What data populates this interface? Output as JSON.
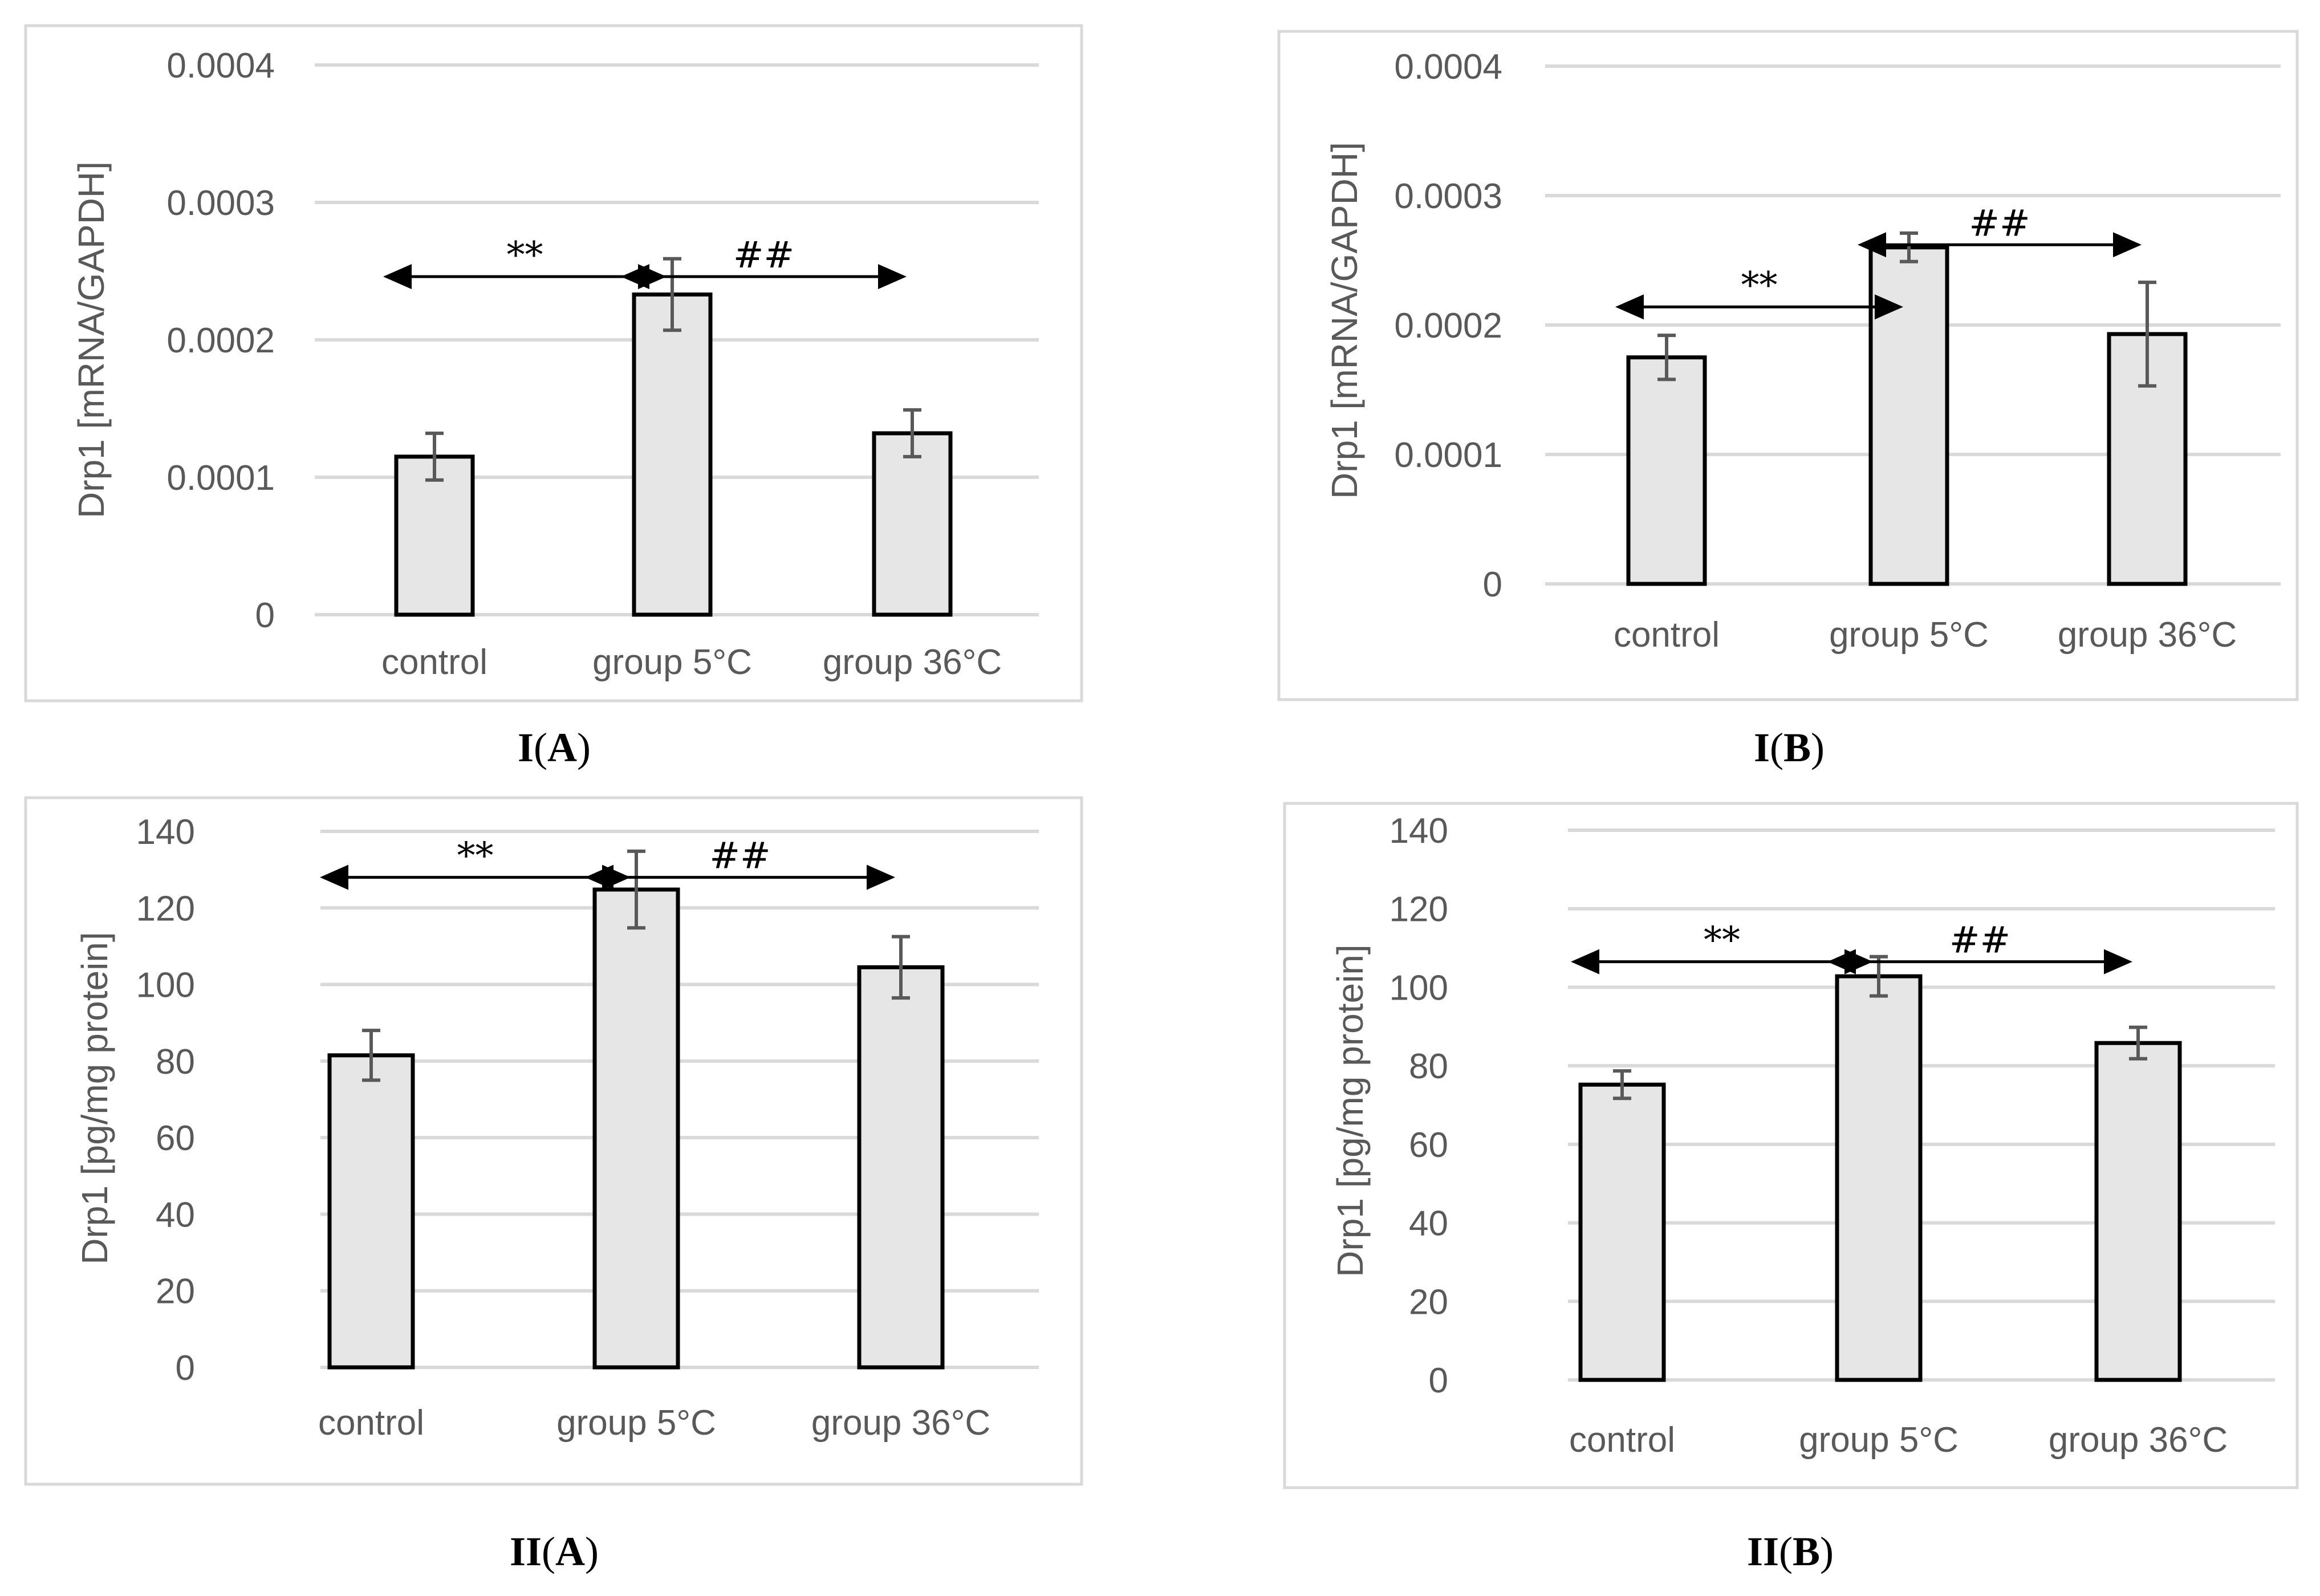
{
  "chart_data": [
    {
      "id": "IA",
      "type": "bar",
      "caption": {
        "roman": "I",
        "letter": "A"
      },
      "ylabel": "Drp1 [mRNA/GAPDH]",
      "categories": [
        "control",
        "group 5°C",
        "group 36°C"
      ],
      "values": [
        0.000115,
        0.000233,
        0.000132
      ],
      "errors": [
        1.7e-05,
        2.6e-05,
        1.7e-05
      ],
      "ylim": [
        0,
        0.0004
      ],
      "yticks": [
        0,
        0.0001,
        0.0002,
        0.0003,
        0.0004
      ],
      "ytick_labels": [
        "0",
        "0.0001",
        "0.0002",
        "0.0003",
        "0.0004"
      ],
      "grid": true,
      "annotations": [
        {
          "text": "**",
          "from": 0,
          "to": 1,
          "y": 0.000246
        },
        {
          "text": "##",
          "from": 1,
          "to": 2,
          "y": 0.000246
        }
      ]
    },
    {
      "id": "IB",
      "type": "bar",
      "caption": {
        "roman": "I",
        "letter": "B"
      },
      "ylabel": "Drp1 [mRNA/GAPDH]",
      "categories": [
        "control",
        "group 5°C",
        "group 36°C"
      ],
      "values": [
        0.000175,
        0.00026,
        0.000193
      ],
      "errors": [
        1.7e-05,
        1.1e-05,
        4e-05
      ],
      "ylim": [
        0,
        0.0004
      ],
      "yticks": [
        0,
        0.0001,
        0.0002,
        0.0003,
        0.0004
      ],
      "ytick_labels": [
        "0",
        "0.0001",
        "0.0002",
        "0.0003",
        "0.0004"
      ],
      "grid": true,
      "annotations": [
        {
          "text": "**",
          "from": 0,
          "to": 1,
          "y": 0.000214
        },
        {
          "text": "##",
          "from": 1,
          "to": 2,
          "y": 0.000262
        }
      ]
    },
    {
      "id": "IIA",
      "type": "bar",
      "caption": {
        "roman": "II",
        "letter": "A"
      },
      "ylabel": "Drp1 [pg/mg protein]",
      "categories": [
        "control",
        "group 5°C",
        "group 36°C"
      ],
      "values": [
        81.5,
        124.8,
        104.5
      ],
      "errors": [
        6.5,
        10,
        8
      ],
      "ylim": [
        0,
        140
      ],
      "yticks": [
        0,
        20,
        40,
        60,
        80,
        100,
        120,
        140
      ],
      "ytick_labels": [
        "0",
        "20",
        "40",
        "60",
        "80",
        "100",
        "120",
        "140"
      ],
      "grid": true,
      "annotations": [
        {
          "text": "**",
          "from": 0,
          "to": 1,
          "y": 128
        },
        {
          "text": "##",
          "from": 1,
          "to": 2,
          "y": 128
        }
      ]
    },
    {
      "id": "IIB",
      "type": "bar",
      "caption": {
        "roman": "II",
        "letter": "B"
      },
      "ylabel": "Drp1 [pg/mg protein]",
      "categories": [
        "control",
        "group 5°C",
        "group 36°C"
      ],
      "values": [
        75.2,
        102.8,
        85.8
      ],
      "errors": [
        3.5,
        5,
        4
      ],
      "ylim": [
        0,
        140
      ],
      "yticks": [
        0,
        20,
        40,
        60,
        80,
        100,
        120,
        140
      ],
      "ytick_labels": [
        "0",
        "20",
        "40",
        "60",
        "80",
        "100",
        "120",
        "140"
      ],
      "grid": true,
      "annotations": [
        {
          "text": "**",
          "from": 0,
          "to": 1,
          "y": 106.5
        },
        {
          "text": "##",
          "from": 1,
          "to": 2,
          "y": 106.5
        }
      ]
    }
  ]
}
